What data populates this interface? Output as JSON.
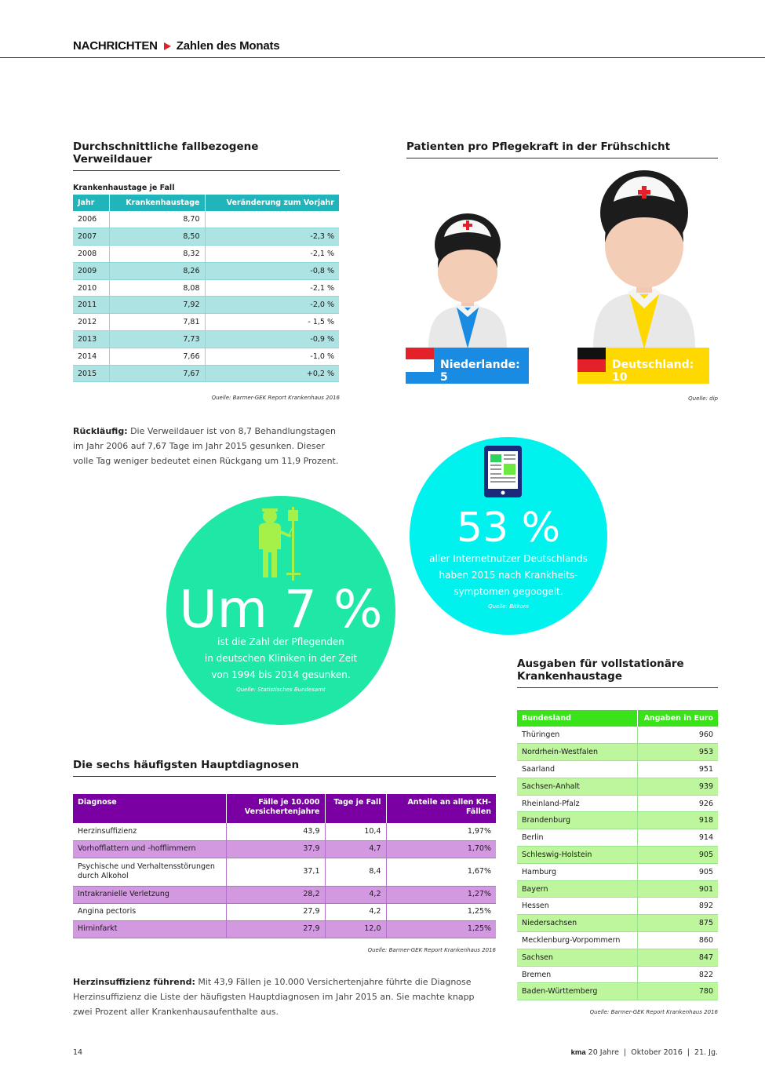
{
  "header": {
    "section": "NACHRICHTEN",
    "subsection": "Zahlen des Monats"
  },
  "verweildauer": {
    "title": "Durchschnittliche fallbezogene Verweildauer",
    "subtitle": "Krankenhaustage je Fall",
    "columns": [
      "Jahr",
      "Krankenhaustage",
      "Veränderung zum Vorjahr"
    ],
    "rows": [
      [
        "2006",
        "8,70",
        ""
      ],
      [
        "2007",
        "8,50",
        "-2,3 %"
      ],
      [
        "2008",
        "8,32",
        "-2,1 %"
      ],
      [
        "2009",
        "8,26",
        "-0,8 %"
      ],
      [
        "2010",
        "8,08",
        "-2,1 %"
      ],
      [
        "2011",
        "7,92",
        "-2,0 %"
      ],
      [
        "2012",
        "7,81",
        "- 1,5 %"
      ],
      [
        "2013",
        "7,73",
        "-0,9 %"
      ],
      [
        "2014",
        "7,66",
        "-1,0 %"
      ],
      [
        "2015",
        "7,67",
        "+0,2 %"
      ]
    ],
    "source": "Quelle: Barmer-GEK Report Krankenhaus 2016",
    "note_bold": "Rückläufig:",
    "note_text": " Die Verweildauer ist von 8,7 Behandlungstagen im Jahr 2006 auf 7,67 Tage im Jahr 2015 gesunken. Dieser volle Tag weniger bedeutet einen Rückgang um 11,9 Prozent."
  },
  "pflegekraft": {
    "title": "Patienten pro Pflegekraft in der Frühschicht",
    "nl_label": "Niederlande: 5",
    "de_label": "Deutschland: 10",
    "source": "Quelle: dip",
    "colors": {
      "nl_shirt": "#1a8be3",
      "de_shirt": "#ffd800",
      "cross": "#e4202a"
    }
  },
  "pflegende": {
    "headline": "Um 7 %",
    "lines": [
      "ist die Zahl der Pflegenden",
      "in deutschen Kliniken in der Zeit",
      "von 1994 bis 2014 gesunken."
    ],
    "source": "Quelle: Statistisches Bundesamt",
    "icon": "nurse-with-iv-stand-icon"
  },
  "internet": {
    "headline": "53 %",
    "lines": [
      "aller Internetnutzer Deutschlands",
      "haben 2015 nach Krankheits-",
      "symptomen gegoogelt."
    ],
    "source": "Quelle: Bitkom",
    "icon": "tablet-icon"
  },
  "hauptdiagnosen": {
    "title": "Die sechs häufigsten Hauptdiagnosen",
    "columns": [
      "Diagnose",
      "Fälle je 10.000 Versichertenjahre",
      "Tage je Fall",
      "Anteile an allen KH-Fällen"
    ],
    "rows": [
      [
        "Herzinsuffizienz",
        "43,9",
        "10,4",
        "1,97%"
      ],
      [
        "Vorhofflattern und -hofflimmern",
        "37,9",
        "4,7",
        "1,70%"
      ],
      [
        "Psychische und Verhaltensstörungen durch Alkohol",
        "37,1",
        "8,4",
        "1,67%"
      ],
      [
        "Intrakranielle Verletzung",
        "28,2",
        "4,2",
        "1,27%"
      ],
      [
        "Angina pectoris",
        "27,9",
        "4,2",
        "1,25%"
      ],
      [
        "Hirninfarkt",
        "27,9",
        "12,0",
        "1,25%"
      ]
    ],
    "source": "Quelle: Barmer-GEK Report Krankenhaus 2016",
    "note_bold": "Herzinsuffizienz führend:",
    "note_text": " Mit 43,9 Fällen je 10.000 Versichertenjahre führte die Diagnose Herzinsuffizienz die Liste der häufigsten Hauptdiagnosen im Jahr 2015 an. Sie machte knapp zwei Prozent aller Krankenhausaufenthalte aus."
  },
  "ausgaben": {
    "title": "Ausgaben für vollstationäre Krankenhaustage",
    "columns": [
      "Bundesland",
      "Angaben in Euro"
    ],
    "rows": [
      [
        "Thüringen",
        "960"
      ],
      [
        "Nordrhein-Westfalen",
        "953"
      ],
      [
        "Saarland",
        "951"
      ],
      [
        "Sachsen-Anhalt",
        "939"
      ],
      [
        "Rheinland-Pfalz",
        "926"
      ],
      [
        "Brandenburg",
        "918"
      ],
      [
        "Berlin",
        "914"
      ],
      [
        "Schleswig-Holstein",
        "905"
      ],
      [
        "Hamburg",
        "905"
      ],
      [
        "Bayern",
        "901"
      ],
      [
        "Hessen",
        "892"
      ],
      [
        "Niedersachsen",
        "875"
      ],
      [
        "Mecklenburg-Vorpommern",
        "860"
      ],
      [
        "Sachsen",
        "847"
      ],
      [
        "Bremen",
        "822"
      ],
      [
        "Baden-Württemberg",
        "780"
      ]
    ],
    "source": "Quelle: Barmer-GEK Report Krankenhaus 2016"
  },
  "footer": {
    "page": "14",
    "brand": "kma",
    "info": "20 Jahre  |  Oktober 2016  |  21. Jg."
  }
}
